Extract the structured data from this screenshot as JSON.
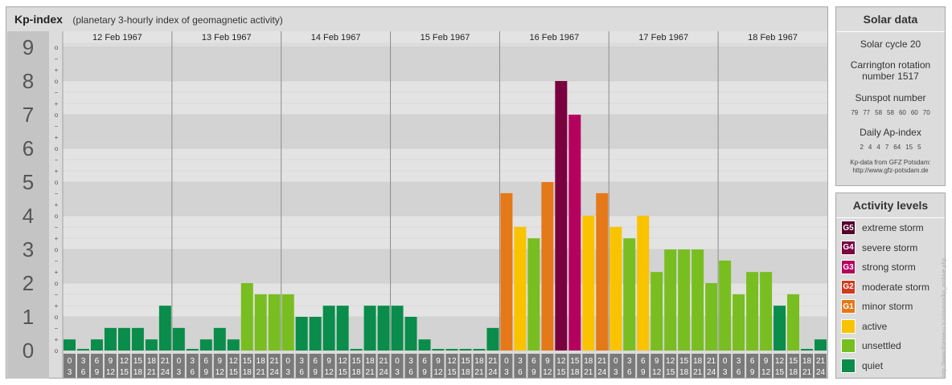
{
  "header": {
    "title": "Kp-index",
    "subtitle": "(planetary 3-hourly index of geomagnetic activity)"
  },
  "chart_data": {
    "type": "bar",
    "ylim": [
      0,
      9
    ],
    "y_ticks": [
      "0",
      "1",
      "2",
      "3",
      "4",
      "5",
      "6",
      "7",
      "8",
      "9"
    ],
    "minor_ticks": [
      "o",
      "+",
      "−"
    ],
    "days": [
      "12 Feb 1967",
      "13 Feb 1967",
      "14 Feb 1967",
      "15 Feb 1967",
      "16 Feb 1967",
      "17 Feb 1967",
      "18 Feb 1967"
    ],
    "interval_start": [
      "0",
      "3",
      "6",
      "9",
      "12",
      "15",
      "18",
      "21"
    ],
    "interval_end": [
      "3",
      "6",
      "9",
      "12",
      "15",
      "18",
      "21",
      "24"
    ],
    "values": [
      0.33,
      0,
      0.33,
      0.67,
      0.67,
      0.67,
      0.33,
      1.33,
      0.67,
      0,
      0.33,
      0.67,
      0.33,
      2,
      1.67,
      1.67,
      1.67,
      1,
      1,
      1.33,
      1.33,
      0,
      1.33,
      1.33,
      1.33,
      1,
      0.33,
      0,
      0,
      0,
      0,
      0.67,
      4.67,
      3.67,
      3.33,
      5,
      8,
      7,
      4,
      4.67,
      3.67,
      3.33,
      4,
      2.33,
      3,
      3,
      3,
      2,
      2.67,
      1.67,
      2.33,
      2.33,
      1.33,
      1.67,
      0,
      0.33
    ],
    "category_colors": {
      "quiet": "#0a8c4b",
      "unsettled": "#78be20",
      "active": "#f9c300",
      "G1": "#e57818",
      "G2": "#d13a1e",
      "G3": "#b5005e",
      "G4": "#7a0040",
      "G5": "#54002a"
    }
  },
  "solar": {
    "title": "Solar data",
    "cycle": "Solar cycle 20",
    "rotation_1": "Carrington rotation",
    "rotation_2": "number 1517",
    "sunspot_label": "Sunspot number",
    "sunspot_values": [
      "79",
      "77",
      "58",
      "58",
      "60",
      "60",
      "70"
    ],
    "ap_label": "Daily Ap-index",
    "ap_values": [
      "2",
      "4",
      "4",
      "7",
      "64",
      "15",
      "5"
    ],
    "credit_1": "Kp-data from GFZ Potsdam:",
    "credit_2": "http://www.gfz-potsdam.de"
  },
  "activity": {
    "title": "Activity levels",
    "levels": [
      {
        "code": "G5",
        "label": "extreme storm",
        "color": "#54002a"
      },
      {
        "code": "G4",
        "label": "severe storm",
        "color": "#7a0040"
      },
      {
        "code": "G3",
        "label": "strong storm",
        "color": "#b5005e"
      },
      {
        "code": "G2",
        "label": "moderate storm",
        "color": "#d13a1e"
      },
      {
        "code": "G1",
        "label": "minor storm",
        "color": "#e57818"
      },
      {
        "code": "",
        "label": "active",
        "color": "#f9c300"
      },
      {
        "code": "",
        "label": "unsettled",
        "color": "#78be20"
      },
      {
        "code": "",
        "label": "quiet",
        "color": "#0a8c4b"
      }
    ]
  },
  "watermark": "http://www.thiemecu.tr.ro/aurora/kp_archive.php"
}
